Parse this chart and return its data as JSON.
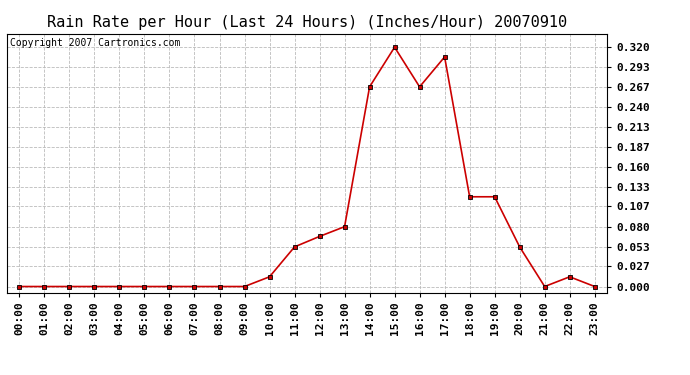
{
  "title": "Rain Rate per Hour (Last 24 Hours) (Inches/Hour) 20070910",
  "copyright": "Copyright 2007 Cartronics.com",
  "x_labels": [
    "00:00",
    "01:00",
    "02:00",
    "03:00",
    "04:00",
    "05:00",
    "06:00",
    "07:00",
    "08:00",
    "09:00",
    "10:00",
    "11:00",
    "12:00",
    "13:00",
    "14:00",
    "15:00",
    "16:00",
    "17:00",
    "18:00",
    "19:00",
    "20:00",
    "21:00",
    "22:00",
    "23:00"
  ],
  "y_values": [
    0.0,
    0.0,
    0.0,
    0.0,
    0.0,
    0.0,
    0.0,
    0.0,
    0.0,
    0.0,
    0.013,
    0.053,
    0.067,
    0.08,
    0.267,
    0.32,
    0.267,
    0.307,
    0.12,
    0.12,
    0.053,
    0.0,
    0.013,
    0.0
  ],
  "y_ticks": [
    0.0,
    0.027,
    0.053,
    0.08,
    0.107,
    0.133,
    0.16,
    0.187,
    0.213,
    0.24,
    0.267,
    0.293,
    0.32
  ],
  "line_color": "#cc0000",
  "marker_color": "#cc0000",
  "bg_color": "#ffffff",
  "grid_color": "#bbbbbb",
  "title_fontsize": 11,
  "copyright_fontsize": 7,
  "tick_fontsize": 8,
  "ylim": [
    -0.008,
    0.338
  ]
}
